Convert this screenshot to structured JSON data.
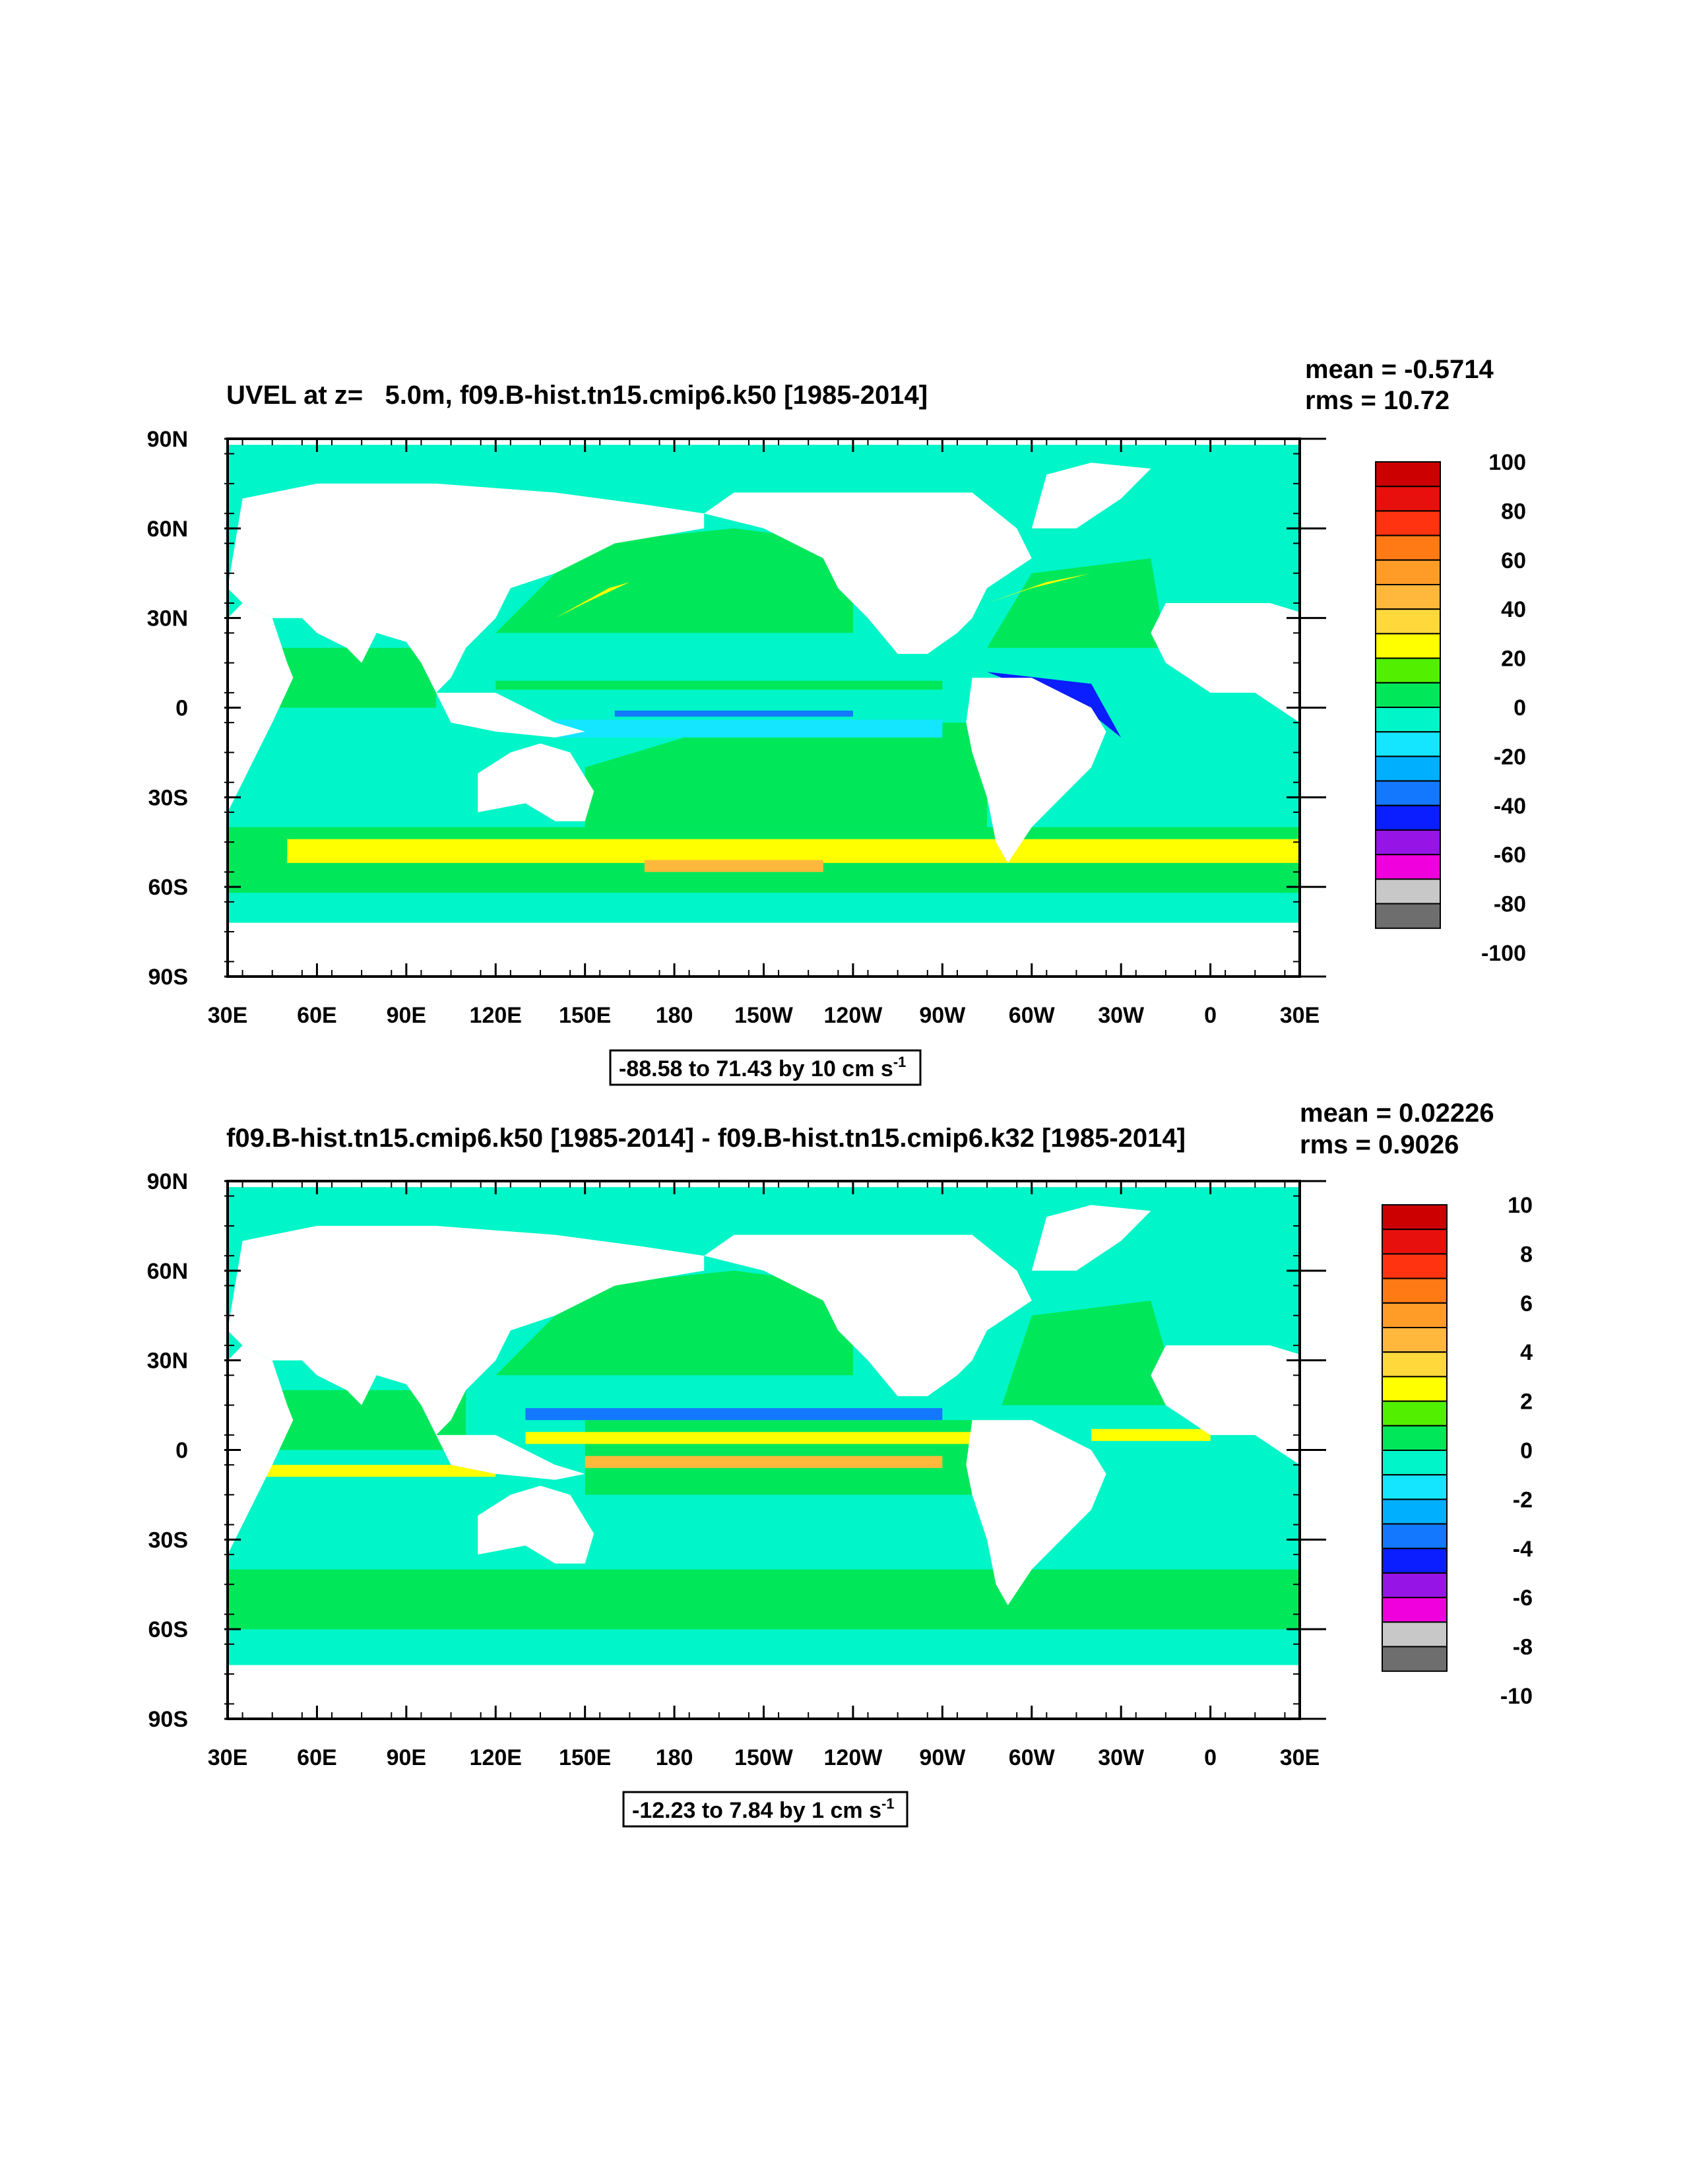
{
  "chart_data": [
    {
      "type": "heatmap",
      "title": "UVEL at z=   5.0m, f09.B-hist.tn15.cmip6.k50 [1985-2014]",
      "stats": {
        "mean": "mean = -0.5714",
        "rms": "rms = 10.72"
      },
      "x_tick_labels": [
        "30E",
        "60E",
        "90E",
        "120E",
        "150E",
        "180",
        "150W",
        "120W",
        "90W",
        "60W",
        "30W",
        "0",
        "30E"
      ],
      "y_tick_labels": [
        "90N",
        "60N",
        "30N",
        "0",
        "30S",
        "60S",
        "90S"
      ],
      "xlim": [
        30,
        390
      ],
      "ylim": [
        -90,
        90
      ],
      "contour_info": {
        "text": "-88.58 to 71.43 by 10 cm s",
        "superscript": "-1"
      },
      "colorbar": {
        "labels": [
          "100",
          "80",
          "60",
          "40",
          "20",
          "0",
          "-20",
          "-40",
          "-60",
          "-80",
          "-100"
        ],
        "colors": [
          "#cc0000",
          "#e8100c",
          "#ff3310",
          "#ff7a14",
          "#ff9c28",
          "#ffb83c",
          "#ffd83c",
          "#ffff00",
          "#52f000",
          "#00e85a",
          "#00f5c8",
          "#14e6ff",
          "#00b0ff",
          "#1478ff",
          "#0a1eff",
          "#9614e6",
          "#f000dc",
          "#c8c8c8",
          "#6e6e6e"
        ]
      }
    },
    {
      "type": "heatmap",
      "title": "f09.B-hist.tn15.cmip6.k50 [1985-2014] - f09.B-hist.tn15.cmip6.k32 [1985-2014]",
      "stats": {
        "mean": "mean = 0.02226",
        "rms": "rms = 0.9026"
      },
      "x_tick_labels": [
        "30E",
        "60E",
        "90E",
        "120E",
        "150E",
        "180",
        "150W",
        "120W",
        "90W",
        "60W",
        "30W",
        "0",
        "30E"
      ],
      "y_tick_labels": [
        "90N",
        "60N",
        "30N",
        "0",
        "30S",
        "60S",
        "90S"
      ],
      "xlim": [
        30,
        390
      ],
      "ylim": [
        -90,
        90
      ],
      "contour_info": {
        "text": "-12.23 to 7.84 by 1 cm s",
        "superscript": "-1"
      },
      "colorbar": {
        "labels": [
          "10",
          "8",
          "6",
          "4",
          "2",
          "0",
          "-2",
          "-4",
          "-6",
          "-8",
          "-10"
        ],
        "colors": [
          "#cc0000",
          "#e8100c",
          "#ff3310",
          "#ff7a14",
          "#ff9c28",
          "#ffb83c",
          "#ffd83c",
          "#ffff00",
          "#52f000",
          "#00e85a",
          "#00f5c8",
          "#14e6ff",
          "#00b0ff",
          "#1478ff",
          "#0a1eff",
          "#9614e6",
          "#f000dc",
          "#c8c8c8",
          "#6e6e6e"
        ]
      }
    }
  ],
  "palette": {
    "land": "#ffffff",
    "ocean_cyan": "#00f5c8",
    "ocean_green": "#00e85a",
    "ocean_lightblue": "#14e6ff",
    "ocean_blue": "#00b0ff",
    "ocean_deepblue": "#1478ff",
    "lime": "#52f000",
    "yellow": "#ffff00",
    "orange": "#ffb83c",
    "darkblue": "#0a1eff"
  }
}
